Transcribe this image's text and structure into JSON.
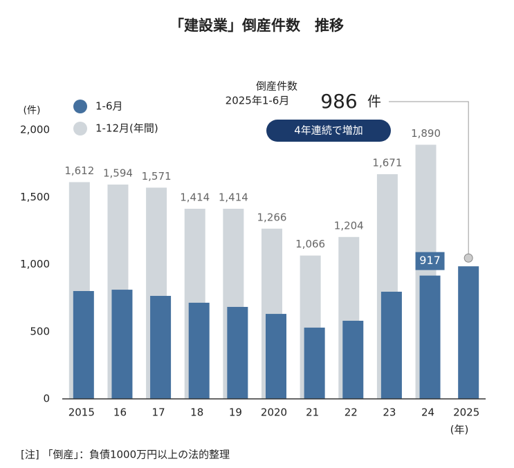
{
  "chart_data": {
    "type": "bar",
    "title": "「建設業」倒産件数　推移",
    "y_unit": "(件)",
    "x_unit": "(年)",
    "categories": [
      "2015",
      "16",
      "17",
      "18",
      "19",
      "2020",
      "21",
      "22",
      "23",
      "24",
      "2025"
    ],
    "series": [
      {
        "name": "1-12月(年間)",
        "color": "#d0d6db",
        "values": [
          1612,
          1594,
          1571,
          1414,
          1414,
          1266,
          1066,
          1204,
          1671,
          1890,
          null
        ],
        "value_labels": [
          "1,612",
          "1,594",
          "1,571",
          "1,414",
          "1,414",
          "1,266",
          "1,066",
          "1,204",
          "1,671",
          "1,890",
          null
        ]
      },
      {
        "name": "1-6月",
        "color": "#44709e",
        "values": [
          802,
          812,
          766,
          715,
          684,
          632,
          530,
          581,
          797,
          917,
          986
        ],
        "value_labels": [
          null,
          null,
          null,
          null,
          null,
          null,
          null,
          null,
          null,
          "917",
          null
        ]
      }
    ],
    "ylim": [
      0,
      2000
    ],
    "yticks": [
      0,
      500,
      {
        "value": 1000,
        "label": "1,000"
      },
      {
        "value": 1500,
        "label": "1,500"
      },
      {
        "value": 2000,
        "label": "2,000"
      }
    ],
    "annotation": {
      "lines": [
        "倒産件数",
        "2025年1-6月"
      ],
      "unit": "件",
      "badge": "4年連続で増加"
    },
    "note": "[注] 「倒産」：負債1000万円以上の法的整理"
  }
}
